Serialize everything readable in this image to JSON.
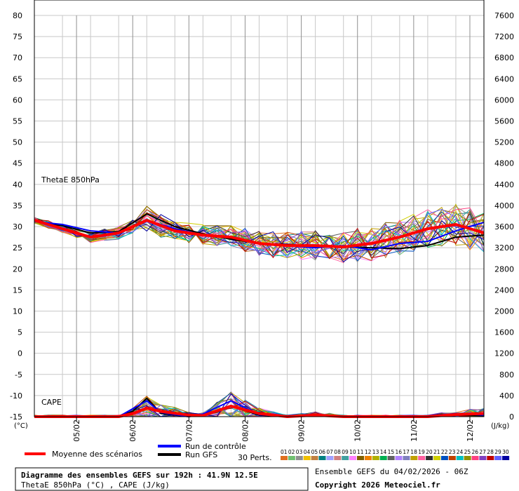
{
  "chart_data": {
    "type": "line",
    "left_axis": {
      "unit": "(°C)",
      "ticks": [
        80,
        75,
        70,
        65,
        60,
        55,
        50,
        45,
        40,
        35,
        30,
        25,
        20,
        15,
        10,
        5,
        0,
        -5,
        -10,
        -15
      ]
    },
    "right_axis": {
      "unit": "(J/kg)",
      "ticks": [
        7600,
        7200,
        6800,
        6400,
        6000,
        5600,
        5200,
        4800,
        4400,
        4000,
        3600,
        3200,
        2800,
        2400,
        2000,
        1600,
        1200,
        800,
        400,
        0
      ]
    },
    "x_ticks": [
      "05/02",
      "06/02",
      "07/02",
      "08/02",
      "09/02",
      "10/02",
      "11/02",
      "12/02"
    ],
    "panel_labels": {
      "theta": "ThetaE 850hPa",
      "cape": "CAPE"
    },
    "grid": true,
    "series": [
      {
        "name": "Moyenne des scénarios",
        "color": "#ff0000",
        "theta_x": [
          0,
          6,
          12,
          24,
          36,
          48,
          60,
          72,
          84,
          96,
          108,
          120,
          132,
          144,
          156,
          168,
          180,
          192
        ],
        "theta_y": [
          31.5,
          30.5,
          29.5,
          27.5,
          28.5,
          31.5,
          29,
          28,
          27.5,
          26,
          25.5,
          25.5,
          25.2,
          26,
          27.5,
          29.5,
          30.5,
          28.5
        ],
        "cape_x": [
          0,
          12,
          24,
          36,
          42,
          48,
          54,
          66,
          72,
          84,
          96,
          108,
          120,
          132,
          144,
          156,
          168,
          180,
          192
        ],
        "cape_y": [
          0,
          0,
          0,
          0,
          60,
          160,
          100,
          30,
          20,
          200,
          60,
          0,
          30,
          0,
          0,
          0,
          0,
          40,
          60
        ]
      },
      {
        "name": "Run de contrôle",
        "color": "#0000ff",
        "theta_x": [
          0,
          12,
          24,
          36,
          48,
          60,
          72,
          84,
          96,
          108,
          120,
          132,
          144,
          156,
          168,
          180,
          192
        ],
        "theta_y": [
          31.2,
          30.5,
          29,
          28.5,
          31.5,
          29.5,
          28,
          27.5,
          26,
          25.5,
          25,
          25.5,
          24.5,
          26,
          26.5,
          29,
          31
        ],
        "cape_x": [
          0,
          24,
          36,
          42,
          48,
          54,
          66,
          72,
          84,
          96,
          108,
          120,
          132,
          144,
          156,
          168,
          180,
          192
        ],
        "cape_y": [
          0,
          0,
          0,
          150,
          300,
          80,
          0,
          50,
          300,
          40,
          0,
          20,
          0,
          0,
          0,
          0,
          60,
          30
        ]
      },
      {
        "name": "Run GFS",
        "color": "#000000",
        "theta_x": [
          0,
          12,
          24,
          36,
          48,
          60,
          72,
          84,
          96,
          108,
          120,
          132,
          144,
          156,
          168,
          180,
          192
        ],
        "theta_y": [
          31.3,
          30.2,
          28.5,
          28.8,
          33,
          30,
          28.3,
          27,
          26,
          25.8,
          25.3,
          25.2,
          25,
          24.8,
          25.5,
          27.5,
          28
        ],
        "cape_x": [
          0,
          24,
          36,
          42,
          48,
          54,
          66,
          72,
          84,
          96,
          108,
          120,
          132,
          144,
          156,
          168,
          180,
          192
        ],
        "cape_y": [
          0,
          0,
          0,
          100,
          350,
          60,
          0,
          40,
          200,
          30,
          0,
          40,
          0,
          0,
          0,
          0,
          30,
          20
        ]
      }
    ],
    "perturbations": {
      "count_label": "30 Perts.",
      "labels": [
        "01",
        "02",
        "03",
        "04",
        "05",
        "06",
        "07",
        "08",
        "09",
        "10",
        "11",
        "12",
        "13",
        "14",
        "15",
        "16",
        "17",
        "18",
        "19",
        "20",
        "21",
        "22",
        "23",
        "24",
        "25",
        "26",
        "27",
        "28",
        "29",
        "30"
      ],
      "colors": [
        "#e07020",
        "#70c070",
        "#909090",
        "#f0c000",
        "#c08040",
        "#008080",
        "#a0a0ff",
        "#d08080",
        "#40a0a0",
        "#ff80ff",
        "#806000",
        "#f08000",
        "#b0b000",
        "#00b050",
        "#606060",
        "#b080ff",
        "#8080c0",
        "#c0a000",
        "#ff60a0",
        "#303030",
        "#d0d000",
        "#0050c0",
        "#c04000",
        "#00c0c0",
        "#909000",
        "#ff4080",
        "#8040c0",
        "#c00000",
        "#6060ff",
        "#0000a0"
      ]
    }
  },
  "legend": {
    "mean": "Moyenne des scénarios",
    "control": "Run de contrôle",
    "gfs": "Run GFS",
    "perts": "30 Perts."
  },
  "footer": {
    "title": "Diagramme des ensembles GEFS sur 192h : 41.9N 12.5E",
    "subtitle": "ThetaE 850hPa (°C) , CAPE (J/kg)",
    "run": "Ensemble GEFS du 04/02/2026 - 06Z",
    "copyright": "Copyright 2026 Meteociel.fr"
  }
}
